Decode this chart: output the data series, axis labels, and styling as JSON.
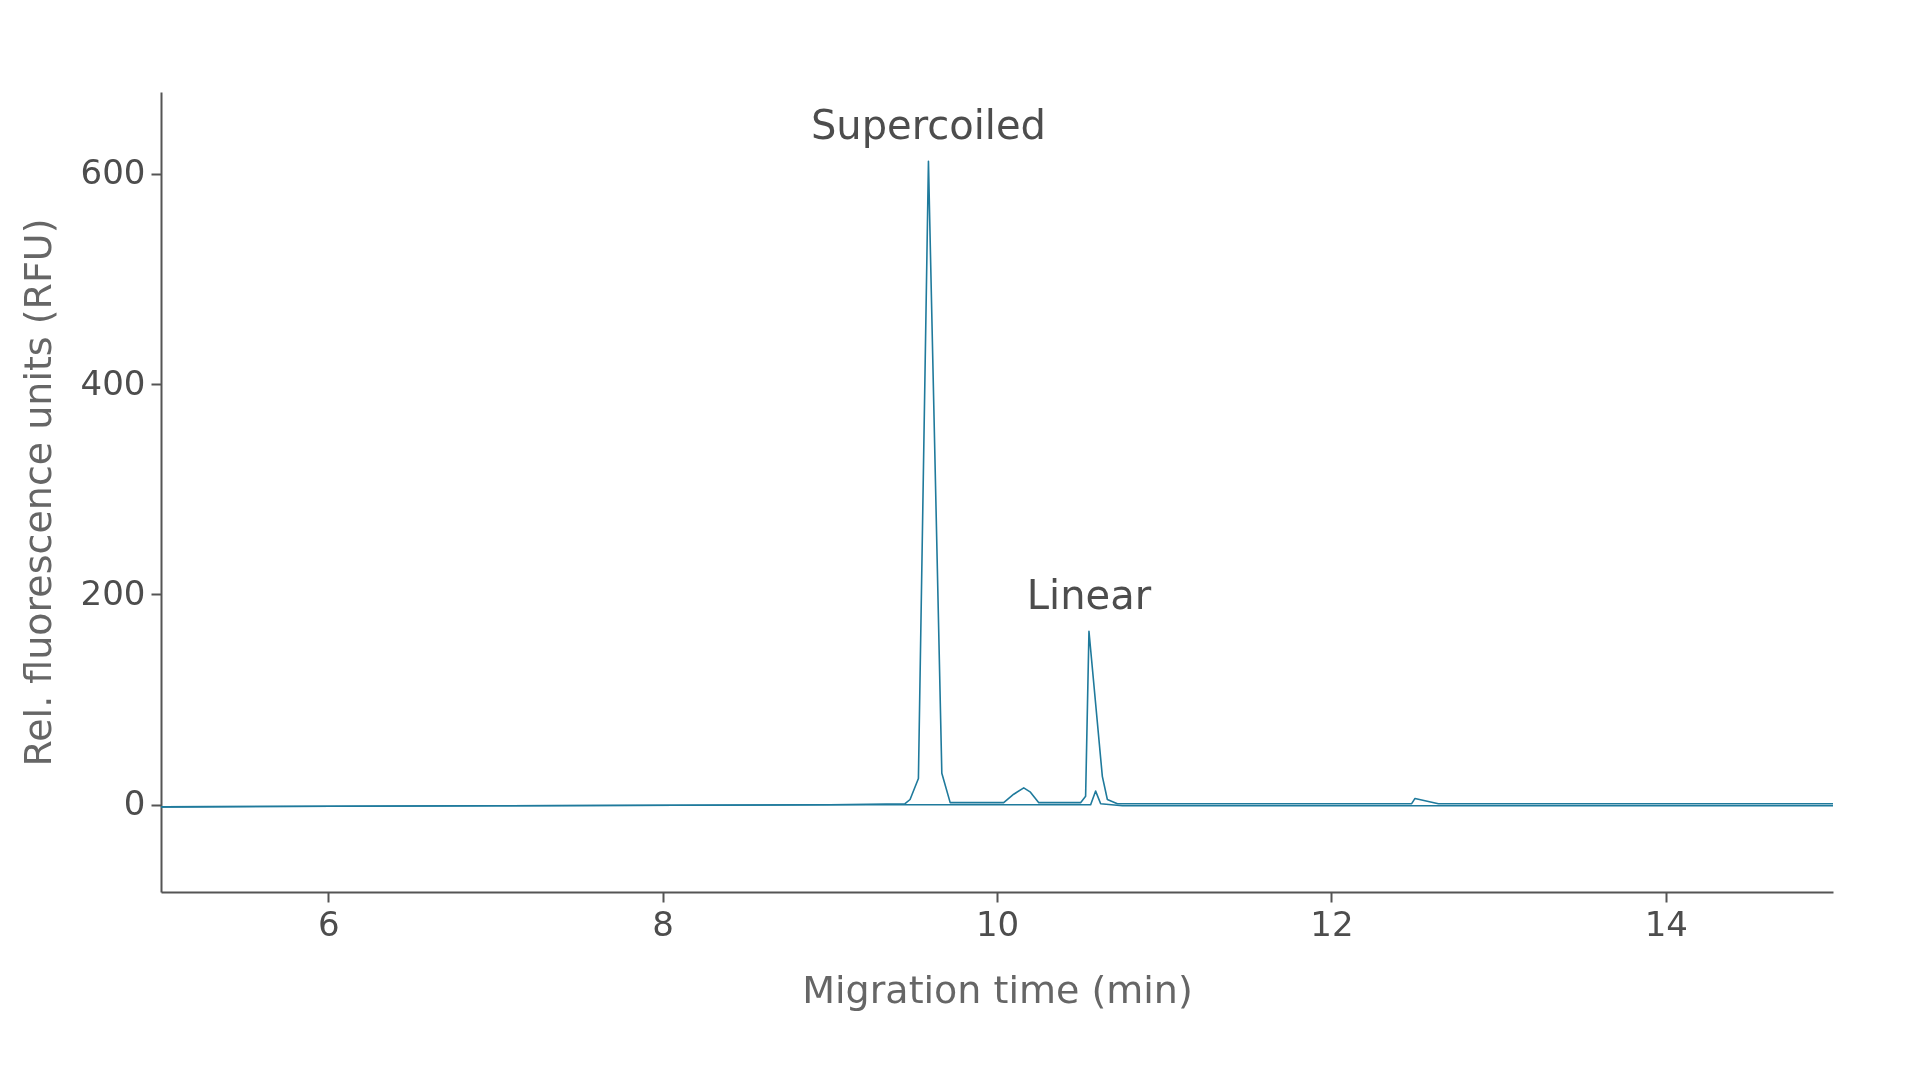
{
  "chart_data": {
    "type": "line",
    "xlabel": "Migration time (min)",
    "ylabel": "Rel. fluorescence units (RFU)",
    "xlim": [
      5,
      15
    ],
    "ylim": [
      -83,
      678
    ],
    "xticks": [
      6,
      8,
      10,
      12,
      14
    ],
    "yticks": [
      0,
      200,
      400,
      600
    ],
    "grid": false,
    "annotations": [
      {
        "text": "Supercoiled",
        "x": 9.59,
        "y": 612
      },
      {
        "text": "Linear",
        "x": 10.55,
        "y": 165
      }
    ],
    "series": [
      {
        "color": "#1f7a9c",
        "x": [
          5,
          7,
          9,
          9.45,
          9.48,
          9.53,
          9.59,
          9.67,
          9.72,
          10.04,
          10.1,
          10.16,
          10.2,
          10.25,
          10.5,
          10.53,
          10.55,
          10.63,
          10.66,
          10.72,
          12.48,
          12.5,
          12.64,
          15
        ],
        "values": [
          -2,
          -1,
          0,
          1,
          5,
          25,
          612,
          30,
          2,
          2,
          10,
          16,
          12,
          2,
          2,
          8,
          165,
          27,
          5,
          1,
          1,
          6,
          1,
          1
        ]
      },
      {
        "color": "#1f7a9c",
        "x": [
          5,
          7,
          9,
          10.5,
          10.56,
          10.59,
          10.62,
          10.75,
          12.5,
          15
        ],
        "values": [
          -2,
          -1,
          0,
          0,
          0,
          13,
          1,
          -1,
          -1,
          -1
        ]
      }
    ]
  }
}
